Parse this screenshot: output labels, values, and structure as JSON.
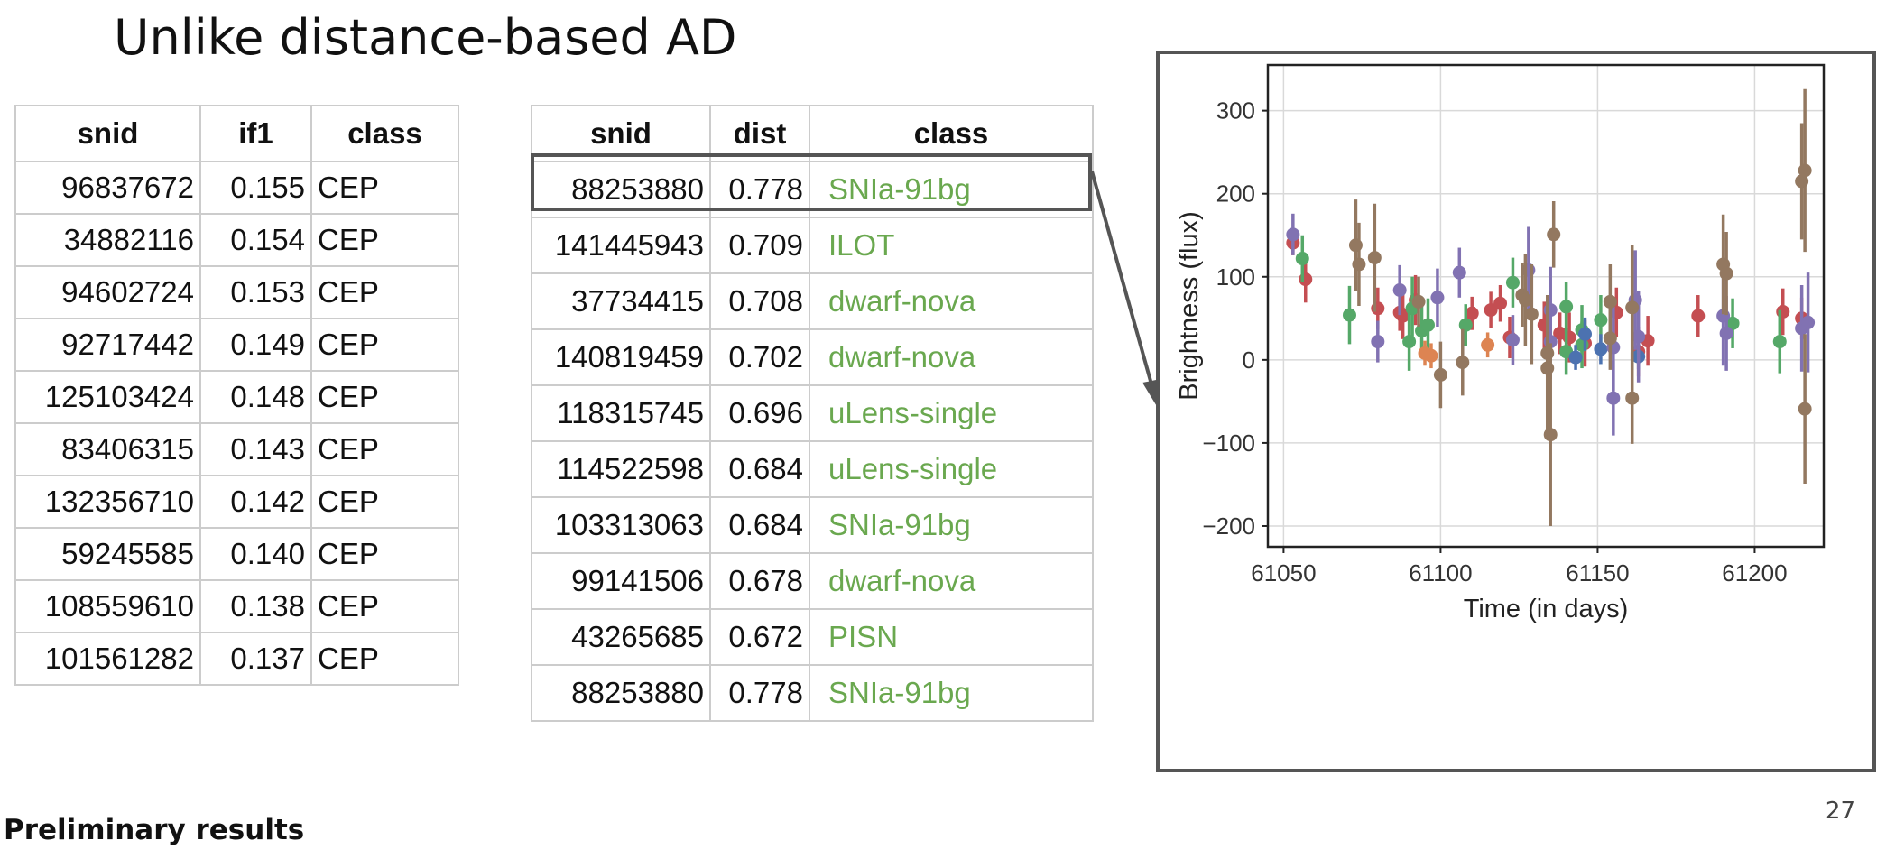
{
  "title": "Unlike distance-based AD",
  "footer": "Preliminary results",
  "page_number": "27",
  "table_left": {
    "headers": [
      "snid",
      "if1",
      "class"
    ],
    "rows": [
      [
        "96837672",
        "0.155",
        "CEP"
      ],
      [
        "34882116",
        "0.154",
        "CEP"
      ],
      [
        "94602724",
        "0.153",
        "CEP"
      ],
      [
        "92717442",
        "0.149",
        "CEP"
      ],
      [
        "125103424",
        "0.148",
        "CEP"
      ],
      [
        "83406315",
        "0.143",
        "CEP"
      ],
      [
        "132356710",
        "0.142",
        "CEP"
      ],
      [
        "59245585",
        "0.140",
        "CEP"
      ],
      [
        "108559610",
        "0.138",
        "CEP"
      ],
      [
        "101561282",
        "0.137",
        "CEP"
      ]
    ]
  },
  "table_right": {
    "headers": [
      "snid",
      "dist",
      "class"
    ],
    "class_color": "#6aa84f",
    "rows": [
      [
        "88253880",
        "0.778",
        "SNIa-91bg"
      ],
      [
        "141445943",
        "0.709",
        "ILOT"
      ],
      [
        "37734415",
        "0.708",
        "dwarf-nova"
      ],
      [
        "140819459",
        "0.702",
        "dwarf-nova"
      ],
      [
        "118315745",
        "0.696",
        "uLens-single"
      ],
      [
        "114522598",
        "0.684",
        "uLens-single"
      ],
      [
        "103313063",
        "0.684",
        "SNIa-91bg"
      ],
      [
        "99141506",
        "0.678",
        "dwarf-nova"
      ],
      [
        "43265685",
        "0.672",
        "PISN"
      ],
      [
        "88253880",
        "0.778",
        "SNIa-91bg"
      ]
    ]
  },
  "chart_data": {
    "type": "scatter",
    "xlabel": "Time (in days)",
    "ylabel": "Brightness (flux)",
    "xlim": [
      61045,
      61222
    ],
    "ylim": [
      -225,
      355
    ],
    "xticks": [
      61050,
      61100,
      61150,
      61200
    ],
    "yticks": [
      300,
      200,
      100,
      0,
      -100,
      -200
    ],
    "xtick_labels": [
      "61050",
      "61100",
      "61150",
      "61200"
    ],
    "ytick_labels": [
      "300",
      "200",
      "100",
      "0",
      "−100",
      "−200"
    ],
    "grid": true,
    "series": [
      {
        "color": "#c44e52",
        "points": [
          [
            61053,
            141,
            15
          ],
          [
            61057,
            97,
            28
          ],
          [
            61080,
            62,
            25
          ],
          [
            61087,
            57,
            22
          ],
          [
            61088,
            53,
            28
          ],
          [
            61092,
            72,
            30
          ],
          [
            61110,
            56,
            20
          ],
          [
            61116,
            60,
            22
          ],
          [
            61119,
            68,
            22
          ],
          [
            61122,
            27,
            25
          ],
          [
            61133,
            42,
            28
          ],
          [
            61138,
            32,
            25
          ],
          [
            61141,
            27,
            30
          ],
          [
            61146,
            20,
            28
          ],
          [
            61156,
            57,
            30
          ],
          [
            61163,
            10,
            30
          ],
          [
            61166,
            23,
            30
          ],
          [
            61182,
            53,
            25
          ],
          [
            61209,
            58,
            28
          ],
          [
            61215,
            50,
            25
          ]
        ]
      },
      {
        "color": "#55a868",
        "points": [
          [
            61056,
            122,
            28
          ],
          [
            61071,
            54,
            35
          ],
          [
            61090,
            22,
            35
          ],
          [
            61091,
            62,
            38
          ],
          [
            61094,
            35,
            33
          ],
          [
            61096,
            42,
            32
          ],
          [
            61108,
            42,
            25
          ],
          [
            61123,
            93,
            30
          ],
          [
            61140,
            64,
            30
          ],
          [
            61140,
            10,
            28
          ],
          [
            61145,
            36,
            30
          ],
          [
            61145,
            18,
            28
          ],
          [
            61151,
            48,
            30
          ],
          [
            61193,
            44,
            30
          ],
          [
            61208,
            22,
            38
          ]
        ]
      },
      {
        "color": "#4c72b0",
        "points": [
          [
            61143,
            3,
            15
          ],
          [
            61146,
            31,
            20
          ],
          [
            61151,
            13,
            18
          ],
          [
            61163,
            4,
            15
          ]
        ]
      },
      {
        "color": "#8172b2",
        "points": [
          [
            61053,
            151,
            25
          ],
          [
            61080,
            22,
            25
          ],
          [
            61087,
            84,
            30
          ],
          [
            61099,
            75,
            35
          ],
          [
            61106,
            105,
            30
          ],
          [
            61123,
            24,
            30
          ],
          [
            61128,
            108,
            52
          ],
          [
            61135,
            60,
            52
          ],
          [
            61135,
            22,
            45
          ],
          [
            61155,
            -46,
            45
          ],
          [
            61155,
            15,
            52
          ],
          [
            61162,
            72,
            60
          ],
          [
            61163,
            28,
            55
          ],
          [
            61190,
            53,
            60
          ],
          [
            61191,
            32,
            45
          ],
          [
            61215,
            38,
            52
          ],
          [
            61217,
            45,
            60
          ]
        ]
      },
      {
        "color": "#dd8452",
        "points": [
          [
            61095,
            8,
            15
          ],
          [
            61097,
            5,
            15
          ],
          [
            61115,
            18,
            15
          ]
        ]
      },
      {
        "color": "#937860",
        "points": [
          [
            61073,
            138,
            55
          ],
          [
            61074,
            115,
            50
          ],
          [
            61079,
            123,
            65
          ],
          [
            61093,
            70,
            30
          ],
          [
            61100,
            -18,
            40
          ],
          [
            61107,
            -3,
            40
          ],
          [
            61126,
            78,
            38
          ],
          [
            61127,
            72,
            55
          ],
          [
            61129,
            55,
            60
          ],
          [
            61134,
            -10,
            80
          ],
          [
            61134,
            8,
            70
          ],
          [
            61135,
            -90,
            110
          ],
          [
            61136,
            151,
            40
          ],
          [
            61154,
            70,
            45
          ],
          [
            61154,
            26,
            38
          ],
          [
            61161,
            -46,
            55
          ],
          [
            61161,
            63,
            75
          ],
          [
            61190,
            115,
            60
          ],
          [
            61191,
            104,
            50
          ],
          [
            61215,
            215,
            70
          ],
          [
            61216,
            228,
            98
          ],
          [
            61216,
            -59,
            90
          ]
        ]
      }
    ]
  }
}
